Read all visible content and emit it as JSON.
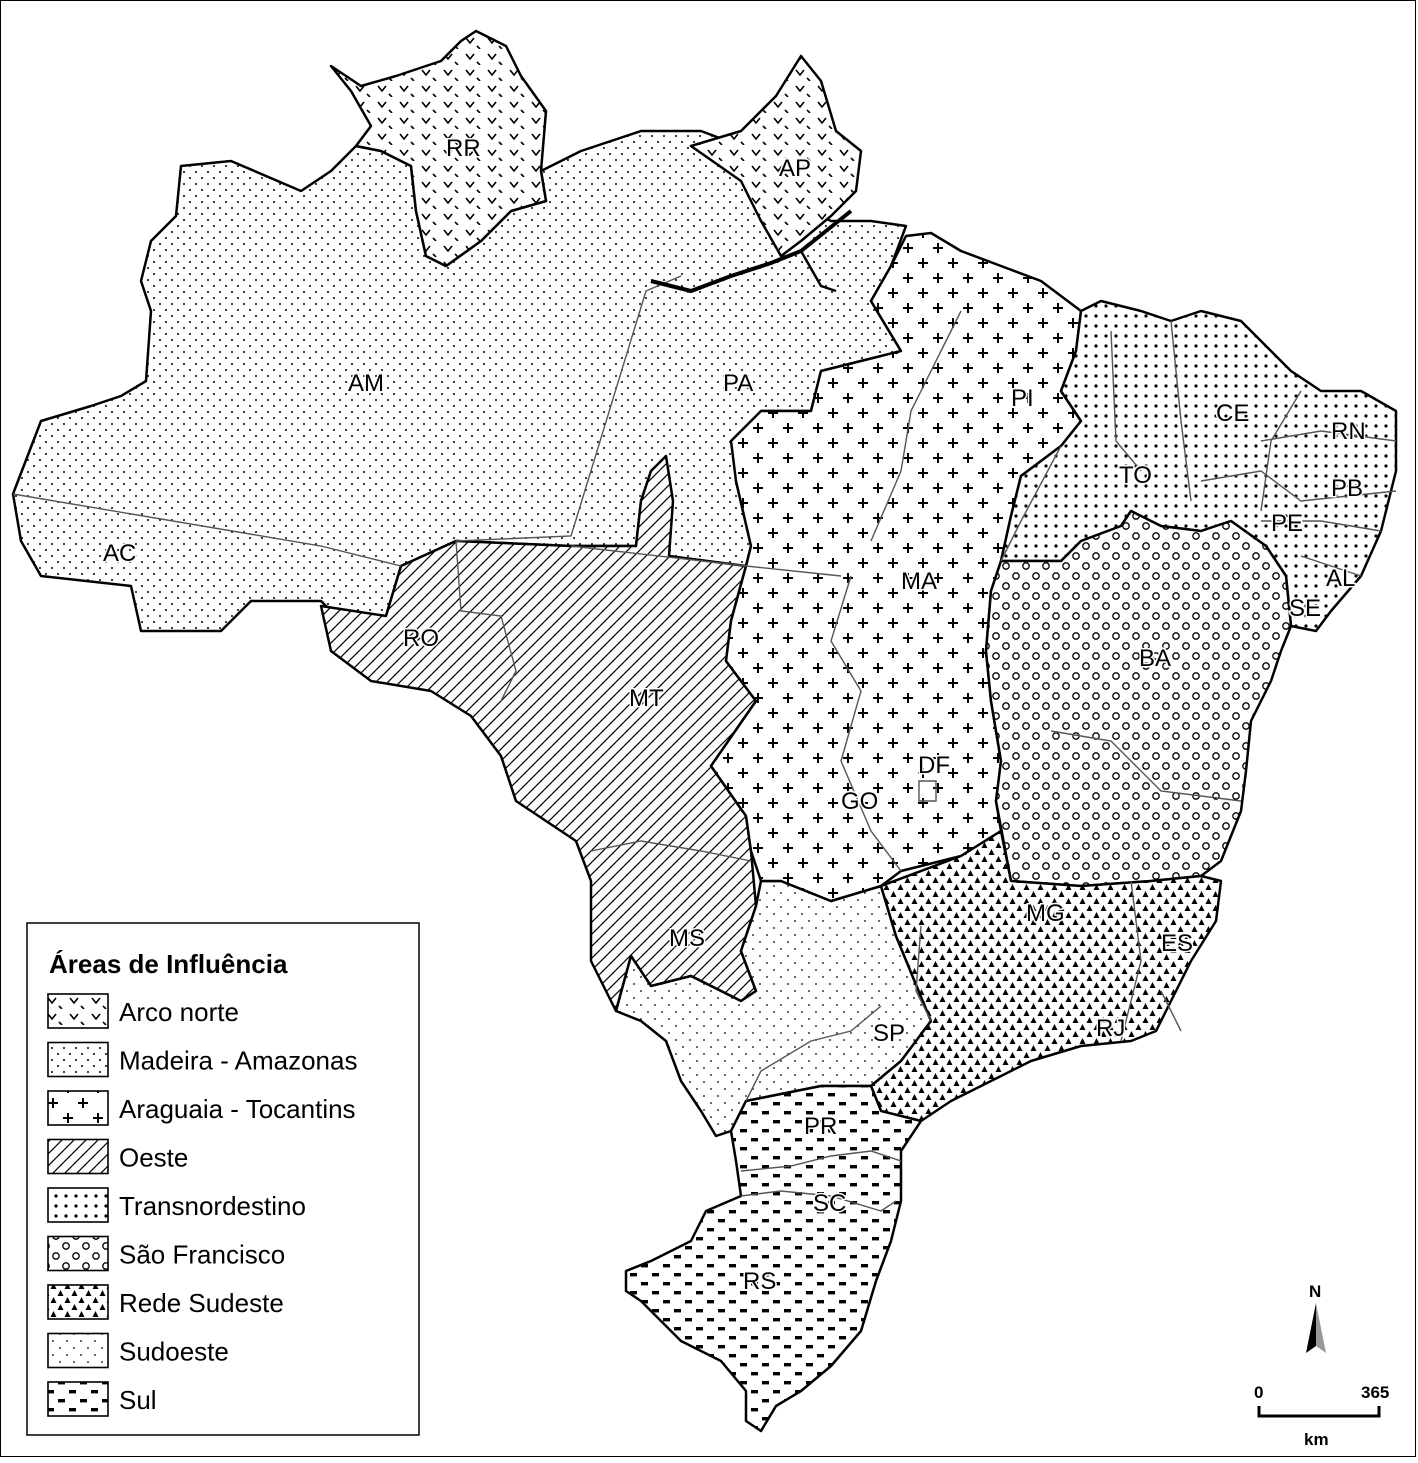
{
  "legend": {
    "title": "Áreas de Influência",
    "items": [
      {
        "label": "Arco norte",
        "pattern": "chevron"
      },
      {
        "label": "Madeira - Amazonas",
        "pattern": "sparse-dots"
      },
      {
        "label": "Araguaia - Tocantins",
        "pattern": "plus"
      },
      {
        "label": "Oeste",
        "pattern": "diagonal-hatch"
      },
      {
        "label": "Transnordestino",
        "pattern": "dense-dots"
      },
      {
        "label": "São Francisco",
        "pattern": "circles"
      },
      {
        "label": "Rede Sudeste",
        "pattern": "triangles"
      },
      {
        "label": "Sudoeste",
        "pattern": "fine-dots"
      },
      {
        "label": "Sul",
        "pattern": "dashes"
      }
    ]
  },
  "states": {
    "RR": "RR",
    "AP": "AP",
    "AM": "AM",
    "PA": "PA",
    "AC": "AC",
    "RO": "RO",
    "MT": "MT",
    "MA": "MA",
    "PI": "PI",
    "TO": "TO",
    "CE": "CE",
    "RN": "RN",
    "PB": "PB",
    "PE": "PE",
    "AL": "AL",
    "SE": "SE",
    "BA": "BA",
    "DF": "DF",
    "GO": "GO",
    "MG": "MG",
    "ES": "ES",
    "RJ": "RJ",
    "SP": "SP",
    "MS": "MS",
    "PR": "PR",
    "SC": "SC",
    "RS": "RS"
  },
  "compass": {
    "label": "N"
  },
  "scale": {
    "start": "0",
    "end": "365",
    "unit": "km"
  },
  "colors": {
    "ink": "#000000",
    "border": "#555555",
    "background": "#ffffff"
  }
}
